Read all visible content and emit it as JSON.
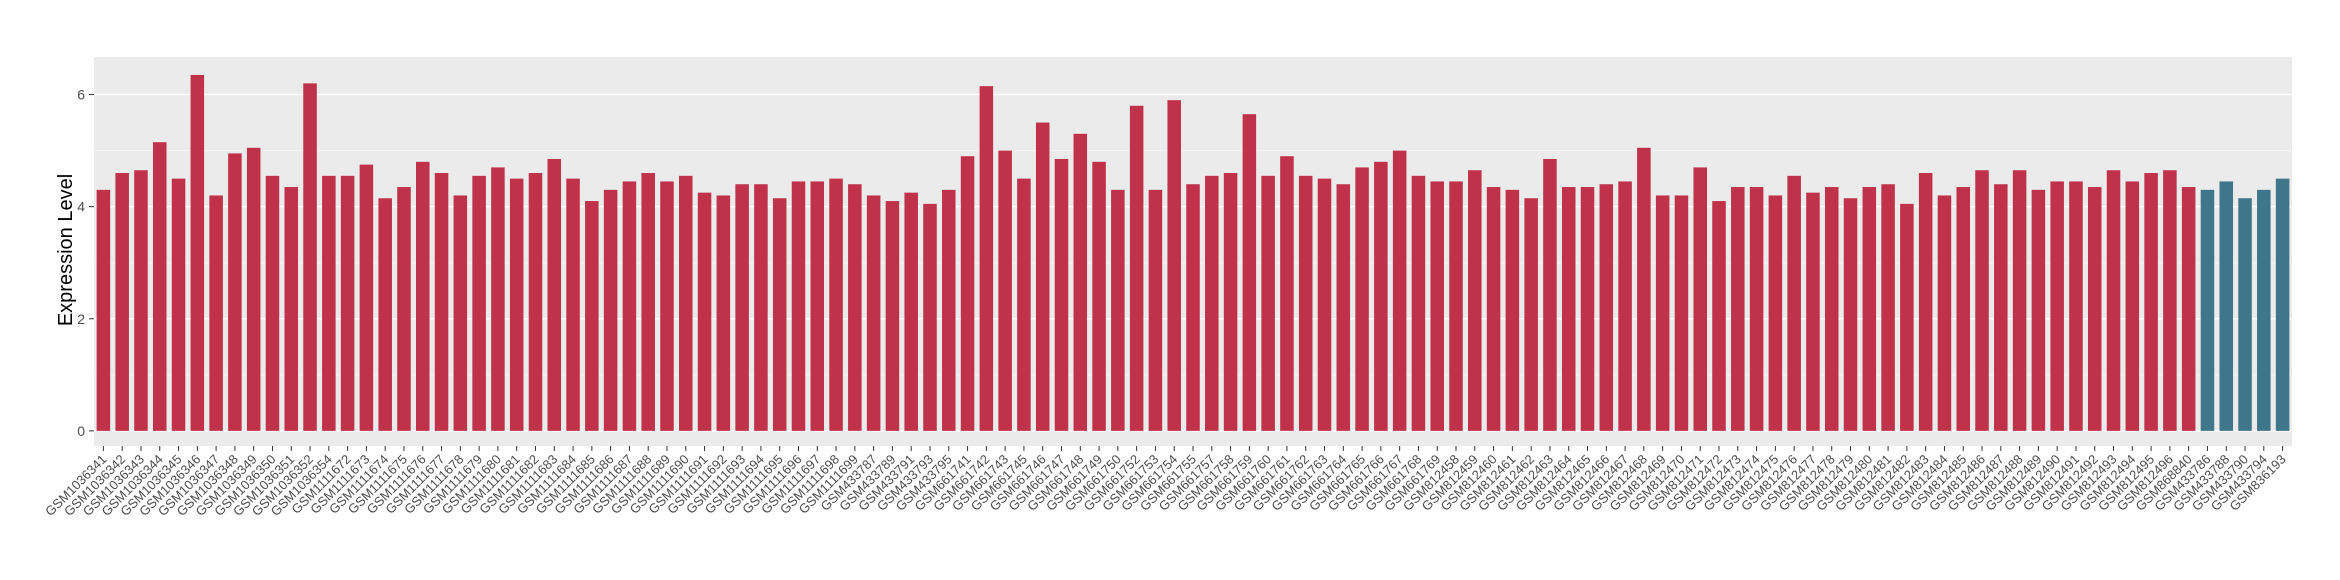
{
  "chart_data": {
    "type": "bar",
    "y_label": "Expression Level",
    "categories": [
      "GSM1036341",
      "GSM1036342",
      "GSM1036343",
      "GSM1036344",
      "GSM1036345",
      "GSM1036346",
      "GSM1036347",
      "GSM1036348",
      "GSM1036349",
      "GSM1036350",
      "GSM1036351",
      "GSM1036352",
      "GSM1036354",
      "GSM1111672",
      "GSM1111673",
      "GSM1111674",
      "GSM1111675",
      "GSM1111676",
      "GSM1111677",
      "GSM1111678",
      "GSM1111679",
      "GSM1111680",
      "GSM1111681",
      "GSM1111682",
      "GSM1111683",
      "GSM1111684",
      "GSM1111685",
      "GSM1111686",
      "GSM1111687",
      "GSM1111688",
      "GSM1111689",
      "GSM1111690",
      "GSM1111691",
      "GSM1111692",
      "GSM1111693",
      "GSM1111694",
      "GSM1111695",
      "GSM1111696",
      "GSM1111697",
      "GSM1111698",
      "GSM1111699",
      "GSM433787",
      "GSM433789",
      "GSM433791",
      "GSM433793",
      "GSM433795",
      "GSM661741",
      "GSM661742",
      "GSM661743",
      "GSM661745",
      "GSM661746",
      "GSM661747",
      "GSM661748",
      "GSM661749",
      "GSM661750",
      "GSM661752",
      "GSM661753",
      "GSM661754",
      "GSM661755",
      "GSM661757",
      "GSM661758",
      "GSM661759",
      "GSM661760",
      "GSM661761",
      "GSM661762",
      "GSM661763",
      "GSM661764",
      "GSM661765",
      "GSM661766",
      "GSM661767",
      "GSM661768",
      "GSM661769",
      "GSM812458",
      "GSM812459",
      "GSM812460",
      "GSM812461",
      "GSM812462",
      "GSM812463",
      "GSM812464",
      "GSM812465",
      "GSM812466",
      "GSM812467",
      "GSM812468",
      "GSM812469",
      "GSM812470",
      "GSM812471",
      "GSM812472",
      "GSM812473",
      "GSM812474",
      "GSM812475",
      "GSM812476",
      "GSM812477",
      "GSM812478",
      "GSM812479",
      "GSM812480",
      "GSM812481",
      "GSM812482",
      "GSM812483",
      "GSM812484",
      "GSM812485",
      "GSM812486",
      "GSM812487",
      "GSM812488",
      "GSM812489",
      "GSM812490",
      "GSM812491",
      "GSM812492",
      "GSM812493",
      "GSM812494",
      "GSM812495",
      "GSM812496",
      "GSM868840",
      "GSM433786",
      "GSM433788",
      "GSM433790",
      "GSM433794",
      "GSM836193"
    ],
    "values": [
      4.3,
      4.6,
      4.65,
      5.15,
      4.5,
      6.35,
      4.2,
      4.95,
      5.05,
      4.55,
      4.35,
      6.2,
      4.55,
      4.55,
      4.75,
      4.15,
      4.35,
      4.8,
      4.6,
      4.2,
      4.55,
      4.7,
      4.5,
      4.6,
      4.85,
      4.5,
      4.1,
      4.3,
      4.45,
      4.6,
      4.45,
      4.55,
      4.25,
      4.2,
      4.4,
      4.4,
      4.15,
      4.45,
      4.45,
      4.5,
      4.4,
      4.2,
      4.1,
      4.25,
      4.05,
      4.3,
      4.9,
      6.15,
      5.0,
      4.5,
      5.5,
      4.85,
      5.3,
      4.8,
      4.3,
      5.8,
      4.3,
      5.9,
      4.4,
      4.55,
      4.6,
      5.65,
      4.55,
      4.9,
      4.55,
      4.5,
      4.4,
      4.7,
      4.8,
      5.0,
      4.55,
      4.45,
      4.45,
      4.65,
      4.35,
      4.3,
      4.15,
      4.85,
      4.35,
      4.35,
      4.4,
      4.45,
      5.05,
      4.2,
      4.2,
      4.7,
      4.1,
      4.35,
      4.35,
      4.2,
      4.55,
      4.25,
      4.35,
      4.15,
      4.35,
      4.4,
      4.05,
      4.6,
      4.2,
      4.35,
      4.65,
      4.4,
      4.65,
      4.3,
      4.45,
      4.45,
      4.35,
      4.65,
      4.45,
      4.6,
      4.65,
      4.35,
      4.3,
      4.45,
      4.15,
      4.3,
      4.5
    ],
    "colors": [
      "#c0314a",
      "#c0314a",
      "#c0314a",
      "#c0314a",
      "#c0314a",
      "#c0314a",
      "#c0314a",
      "#c0314a",
      "#c0314a",
      "#c0314a",
      "#c0314a",
      "#c0314a",
      "#c0314a",
      "#c0314a",
      "#c0314a",
      "#c0314a",
      "#c0314a",
      "#c0314a",
      "#c0314a",
      "#c0314a",
      "#c0314a",
      "#c0314a",
      "#c0314a",
      "#c0314a",
      "#c0314a",
      "#c0314a",
      "#c0314a",
      "#c0314a",
      "#c0314a",
      "#c0314a",
      "#c0314a",
      "#c0314a",
      "#c0314a",
      "#c0314a",
      "#c0314a",
      "#c0314a",
      "#c0314a",
      "#c0314a",
      "#c0314a",
      "#c0314a",
      "#c0314a",
      "#c0314a",
      "#c0314a",
      "#c0314a",
      "#c0314a",
      "#c0314a",
      "#c0314a",
      "#c0314a",
      "#c0314a",
      "#c0314a",
      "#c0314a",
      "#c0314a",
      "#c0314a",
      "#c0314a",
      "#c0314a",
      "#c0314a",
      "#c0314a",
      "#c0314a",
      "#c0314a",
      "#c0314a",
      "#c0314a",
      "#c0314a",
      "#c0314a",
      "#c0314a",
      "#c0314a",
      "#c0314a",
      "#c0314a",
      "#c0314a",
      "#c0314a",
      "#c0314a",
      "#c0314a",
      "#c0314a",
      "#c0314a",
      "#c0314a",
      "#c0314a",
      "#c0314a",
      "#c0314a",
      "#c0314a",
      "#c0314a",
      "#c0314a",
      "#c0314a",
      "#c0314a",
      "#c0314a",
      "#c0314a",
      "#c0314a",
      "#c0314a",
      "#c0314a",
      "#c0314a",
      "#c0314a",
      "#c0314a",
      "#c0314a",
      "#c0314a",
      "#c0314a",
      "#c0314a",
      "#c0314a",
      "#c0314a",
      "#c0314a",
      "#c0314a",
      "#c0314a",
      "#c0314a",
      "#c0314a",
      "#c0314a",
      "#c0314a",
      "#c0314a",
      "#c0314a",
      "#c0314a",
      "#c0314a",
      "#c0314a",
      "#c0314a",
      "#c0314a",
      "#c0314a",
      "#c0314a",
      "#3f7689",
      "#3f7689",
      "#3f7689",
      "#3f7689",
      "#3f7689"
    ],
    "ylim": [
      -0.27,
      6.67
    ],
    "yticks": [
      0,
      2,
      4,
      6
    ],
    "grid": true
  }
}
